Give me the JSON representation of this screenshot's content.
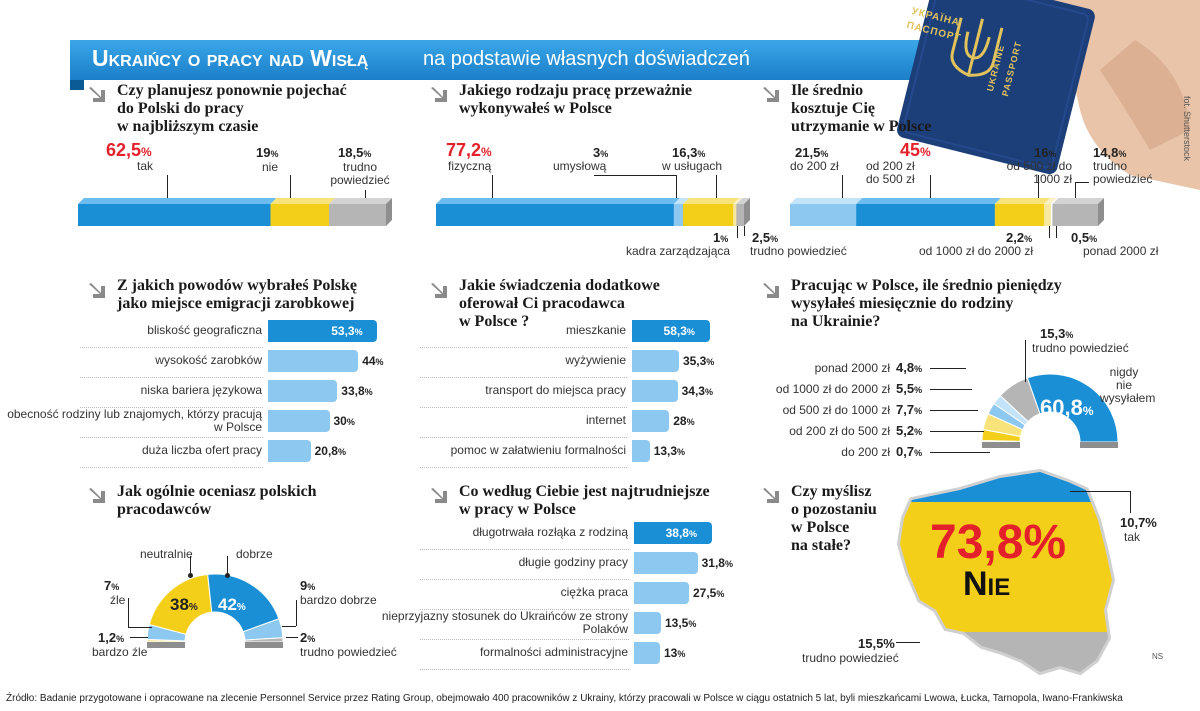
{
  "header": {
    "title": "Ukraińcy o pracy nad Wisłą",
    "subtitle": "na podstawie własnych doświadczeń",
    "photo_credit": "fot. Shutterstock"
  },
  "passport": {
    "line1": "УКРАЇНА",
    "line2": "ПАСПОРТ",
    "line3": "UKRAINE",
    "line4": "PASSPORT"
  },
  "q1": {
    "question": [
      "Czy planujesz ponownie pojechać",
      "do Polski do pracy",
      "w najbliższym czasie"
    ],
    "items": [
      {
        "value": "62,5",
        "label": "tak",
        "color": "#1a8fd6"
      },
      {
        "value": "19",
        "label": "nie",
        "color": "#f4cf1a"
      },
      {
        "value": "18,5",
        "label": "trudno powiedzieć",
        "color": "#b5b5b5"
      }
    ]
  },
  "q2": {
    "question": [
      "Jakiego rodzaju pracę przeważnie",
      "wykonywałeś w Polsce"
    ],
    "items": [
      {
        "value": "77,2",
        "label": "fizyczną"
      },
      {
        "value": "3",
        "label": "umysłową"
      },
      {
        "value": "16,3",
        "label": "w usługach"
      },
      {
        "value": "1",
        "label": "kadra zarządzająca"
      },
      {
        "value": "2,5",
        "label": "trudno powiedzieć"
      }
    ]
  },
  "q3": {
    "question": [
      "Ile średnio",
      "kosztuje Cię",
      "utrzymanie w Polsce"
    ],
    "items": [
      {
        "value": "21,5",
        "label": "do 200 zł"
      },
      {
        "value": "45",
        "label": "od 200 zł do 500 zł"
      },
      {
        "value": "16",
        "label": "od 500 zł do 1000 zł"
      },
      {
        "value": "14,8",
        "label": "trudno powiedzieć"
      },
      {
        "value": "2,2",
        "label": "od 1000 zł do 2000 zł"
      },
      {
        "value": "0,5",
        "label": "ponad 2000 zł"
      }
    ]
  },
  "q4": {
    "question": [
      "Z jakich powodów wybrałeś Polskę",
      "jako miejsce emigracji zarobkowej"
    ],
    "rows": [
      {
        "label": "bliskość geograficzna",
        "value": "53,3"
      },
      {
        "label": "wysokość zarobków",
        "value": "44"
      },
      {
        "label": "niska bariera językowa",
        "value": "33,8"
      },
      {
        "label": "obecność rodziny lub znajomych, którzy pracują w Polsce",
        "value": "30"
      },
      {
        "label": "duża liczba ofert pracy",
        "value": "20,8"
      }
    ]
  },
  "q5": {
    "question": [
      "Jakie świadczenia dodatkowe",
      "oferował Ci pracodawca",
      "w Polsce ?"
    ],
    "rows": [
      {
        "label": "mieszkanie",
        "value": "58,3"
      },
      {
        "label": "wyżywienie",
        "value": "35,3"
      },
      {
        "label": "transport do miejsca pracy",
        "value": "34,3"
      },
      {
        "label": "internet",
        "value": "28"
      },
      {
        "label": "pomoc w załatwieniu formalności",
        "value": "13,3"
      }
    ]
  },
  "q6": {
    "question": [
      "Pracując w Polsce, ile średnio pieniędzy",
      "wysyłałeś miesięcznie do rodziny",
      "na Ukrainie?"
    ],
    "items": [
      {
        "value": "60,8",
        "label": "nigdy nie wysyłałem"
      },
      {
        "value": "15,3",
        "label": "trudno powiedzieć"
      },
      {
        "value": "4,8",
        "label": "ponad 2000 zł"
      },
      {
        "value": "5,5",
        "label": "od 1000 zł do 2000 zł"
      },
      {
        "value": "7,7",
        "label": "od 500 zł do 1000 zł"
      },
      {
        "value": "5,2",
        "label": "od 200 zł do 500 zł"
      },
      {
        "value": "0,7",
        "label": "do 200 zł"
      }
    ]
  },
  "q7": {
    "question": [
      "Jak ogólnie oceniasz polskich",
      "pracodawców"
    ],
    "items": [
      {
        "value": "38",
        "label": "neutralnie"
      },
      {
        "value": "42",
        "label": "dobrze"
      },
      {
        "value": "7",
        "label": "źle"
      },
      {
        "value": "9",
        "label": "bardzo dobrze"
      },
      {
        "value": "1,2",
        "label": "bardzo źle"
      },
      {
        "value": "2",
        "label": "trudno powiedzieć"
      }
    ]
  },
  "q8": {
    "question": [
      "Co według Ciebie jest najtrudniejsze",
      "w pracy w Polsce"
    ],
    "rows": [
      {
        "label": "długotrwała rozłąka z rodziną",
        "value": "38,8"
      },
      {
        "label": "długie godziny pracy",
        "value": "31,8"
      },
      {
        "label": "ciężka praca",
        "value": "27,5"
      },
      {
        "label": "nieprzyjazny stosunek do Ukraińców ze strony Polaków",
        "value": "13,5"
      },
      {
        "label": "formalności administracyjne",
        "value": "13"
      }
    ]
  },
  "q9": {
    "question": [
      "Czy myślisz",
      "o pozostaniu",
      "w Polsce",
      "na stałe?"
    ],
    "no_value": "73,8%",
    "no_label": "Nie",
    "yes_value": "10,7%",
    "yes_label": "tak",
    "unsure_value": "15,5%",
    "unsure_label": "trudno powiedzieć",
    "ns": "NS"
  },
  "percent_sign": "%",
  "source": "Źródło: Badanie przygotowane i opracowane na zlecenie Personnel Service przez Rating Group, obejmowało 400 pracowników z Ukrainy, którzy pracowali w Polsce w ciągu ostatnich 5 lat, byli mieszkańcami Lwowa, Łucka, Tarnopola, Iwano-Frankiwska",
  "colors": {
    "blue": "#1a8fd6",
    "light_blue": "#8cc8ef",
    "yellow": "#f4cf1a",
    "gray": "#b5b5b5",
    "red": "#e4202a",
    "banner": "#2196e0"
  }
}
